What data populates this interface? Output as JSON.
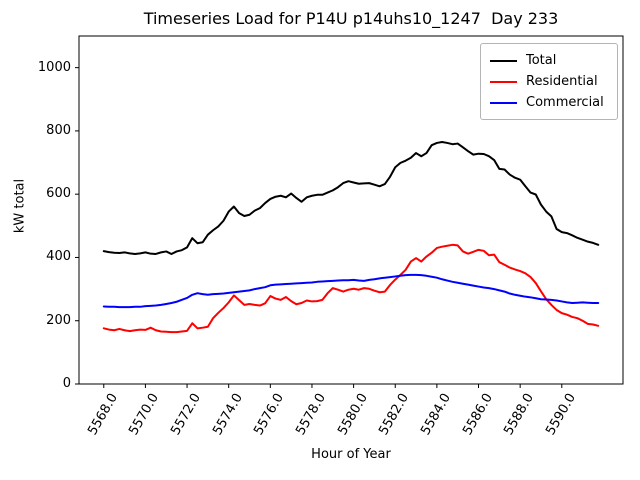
{
  "window": {
    "background": "#ffffff"
  },
  "chart_data": {
    "type": "line",
    "title": "Timeseries Load for P14U p14uhs10_1247  Day 233",
    "xlabel": "Hour of Year",
    "ylabel": "kW total",
    "xlim": [
      5566.81,
      5592.94
    ],
    "ylim": [
      0,
      1100
    ],
    "grid": false,
    "legend": {
      "position": "upper right",
      "entries": [
        "Total",
        "Residential",
        "Commercial"
      ],
      "border_color": "#b4b4b4"
    },
    "x_ticks": {
      "values": [
        5568,
        5570,
        5572,
        5574,
        5576,
        5578,
        5580,
        5582,
        5584,
        5586,
        5588,
        5590
      ],
      "labels": [
        "5568.0",
        "5570.0",
        "5572.0",
        "5574.0",
        "5576.0",
        "5578.0",
        "5580.0",
        "5582.0",
        "5584.0",
        "5586.0",
        "5588.0",
        "5590.0"
      ],
      "rotation_deg": 60
    },
    "y_ticks": {
      "values": [
        0,
        200,
        400,
        600,
        800,
        1000
      ],
      "labels": [
        "0",
        "200",
        "400",
        "600",
        "800",
        "1000"
      ]
    },
    "x": [
      5568.0,
      5568.25,
      5568.5,
      5568.75,
      5569.0,
      5569.25,
      5569.5,
      5569.75,
      5570.0,
      5570.25,
      5570.5,
      5570.75,
      5571.0,
      5571.25,
      5571.5,
      5571.75,
      5572.0,
      5572.25,
      5572.5,
      5572.75,
      5573.0,
      5573.25,
      5573.5,
      5573.75,
      5574.0,
      5574.25,
      5574.5,
      5574.75,
      5575.0,
      5575.25,
      5575.5,
      5575.75,
      5576.0,
      5576.25,
      5576.5,
      5576.75,
      5577.0,
      5577.25,
      5577.5,
      5577.75,
      5578.0,
      5578.25,
      5578.5,
      5578.75,
      5579.0,
      5579.25,
      5579.5,
      5579.75,
      5580.0,
      5580.25,
      5580.5,
      5580.75,
      5581.0,
      5581.25,
      5581.5,
      5581.75,
      5582.0,
      5582.25,
      5582.5,
      5582.75,
      5583.0,
      5583.25,
      5583.5,
      5583.75,
      5584.0,
      5584.25,
      5584.5,
      5584.75,
      5585.0,
      5585.25,
      5585.5,
      5585.75,
      5586.0,
      5586.25,
      5586.5,
      5586.75,
      5587.0,
      5587.25,
      5587.5,
      5587.75,
      5588.0,
      5588.25,
      5588.5,
      5588.75,
      5589.0,
      5589.25,
      5589.5,
      5589.75,
      5590.0,
      5590.25,
      5590.5,
      5590.75,
      5591.0,
      5591.25,
      5591.5,
      5591.75
    ],
    "series": [
      {
        "name": "Total",
        "color": "#000000",
        "values": [
          420,
          417,
          415,
          414,
          416,
          413,
          411,
          413,
          416,
          412,
          411,
          416,
          419,
          411,
          419,
          423,
          432,
          461,
          445,
          448,
          472,
          486,
          498,
          516,
          545,
          561,
          540,
          531,
          535,
          548,
          556,
          572,
          585,
          592,
          595,
          590,
          602,
          588,
          576,
          590,
          595,
          598,
          598,
          605,
          612,
          622,
          635,
          641,
          637,
          633,
          634,
          635,
          630,
          625,
          632,
          655,
          685,
          699,
          706,
          715,
          730,
          720,
          730,
          755,
          762,
          765,
          762,
          758,
          760,
          748,
          736,
          725,
          728,
          727,
          720,
          708,
          680,
          678,
          662,
          652,
          646,
          625,
          605,
          599,
          567,
          545,
          530,
          490,
          480,
          477,
          470,
          462,
          456,
          450,
          446,
          440
        ]
      },
      {
        "name": "Residential",
        "color": "#ff0000",
        "values": [
          176,
          172,
          170,
          174,
          170,
          167,
          170,
          172,
          171,
          178,
          170,
          166,
          165,
          164,
          164,
          166,
          168,
          192,
          176,
          178,
          181,
          208,
          225,
          240,
          258,
          280,
          265,
          250,
          253,
          250,
          248,
          255,
          278,
          270,
          266,
          275,
          262,
          252,
          256,
          264,
          261,
          262,
          266,
          287,
          303,
          298,
          292,
          298,
          301,
          298,
          303,
          301,
          295,
          290,
          292,
          313,
          330,
          345,
          361,
          387,
          398,
          387,
          403,
          415,
          430,
          434,
          437,
          440,
          438,
          419,
          412,
          418,
          424,
          421,
          407,
          409,
          385,
          377,
          368,
          362,
          357,
          350,
          338,
          319,
          293,
          268,
          250,
          234,
          224,
          219,
          212,
          208,
          200,
          190,
          188,
          184
        ]
      },
      {
        "name": "Commercial",
        "color": "#0000ff",
        "values": [
          245,
          244,
          244,
          243,
          243,
          243,
          244,
          244,
          246,
          247,
          248,
          250,
          253,
          256,
          260,
          266,
          272,
          282,
          287,
          284,
          282,
          284,
          285,
          286,
          288,
          290,
          292,
          294,
          296,
          300,
          303,
          306,
          312,
          314,
          315,
          316,
          317,
          318,
          319,
          320,
          321,
          323,
          324,
          325,
          326,
          327,
          328,
          328,
          329,
          327,
          326,
          329,
          331,
          334,
          336,
          338,
          340,
          342,
          344,
          345,
          345,
          344,
          342,
          339,
          336,
          331,
          327,
          323,
          320,
          317,
          314,
          311,
          308,
          305,
          303,
          300,
          296,
          292,
          286,
          282,
          279,
          276,
          274,
          271,
          268,
          267,
          266,
          264,
          261,
          258,
          256,
          257,
          258,
          257,
          256,
          256
        ]
      }
    ]
  }
}
